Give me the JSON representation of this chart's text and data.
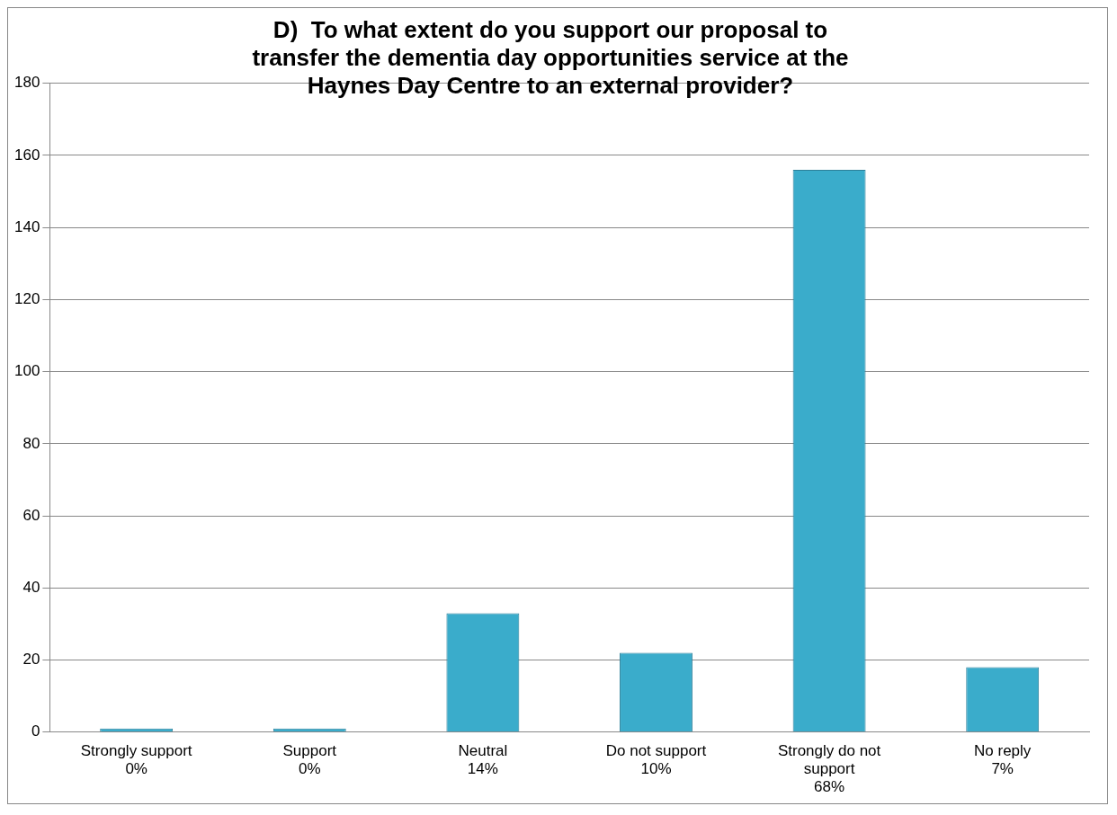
{
  "chart_data": {
    "type": "bar",
    "title": "D)  To what extent do you support our proposal to\ntransfer the dementia day opportunities service at the\nHaynes Day Centre to an external provider?",
    "categories": [
      "Strongly support\n0%",
      "Support\n0%",
      "Neutral\n14%",
      "Do not support\n10%",
      "Strongly do not\nsupport\n68%",
      "No reply\n7%"
    ],
    "values": [
      1,
      1,
      33,
      22,
      156,
      18
    ],
    "color": "#3aaccb",
    "ylim": [
      0,
      180
    ],
    "yticks": [
      0,
      20,
      40,
      60,
      80,
      100,
      120,
      140,
      160,
      180
    ],
    "grid": "y",
    "legend": false
  }
}
